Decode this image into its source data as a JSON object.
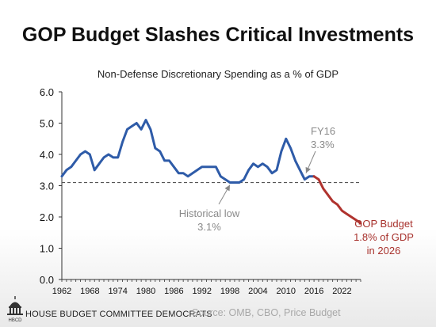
{
  "chart_data": {
    "type": "line",
    "title": "GOP Budget Slashes Critical Investments",
    "subtitle": "Non-Defense Discretionary Spending as a % of GDP",
    "ylim": [
      0,
      6
    ],
    "yticks": [
      "0.0",
      "1.0",
      "2.0",
      "3.0",
      "4.0",
      "5.0",
      "6.0"
    ],
    "xlim": [
      1962,
      2026
    ],
    "xticks": [
      "1962",
      "1968",
      "1974",
      "1980",
      "1986",
      "1992",
      "1998",
      "2004",
      "2010",
      "2016",
      "2022"
    ],
    "historical_line": 3.1,
    "series": [
      {
        "name": "",
        "color": "#2e5ba8",
        "x": [
          1962,
          1963,
          1964,
          1965,
          1966,
          1967,
          1968,
          1969,
          1970,
          1971,
          1972,
          1973,
          1974,
          1975,
          1976,
          1977,
          1978,
          1979,
          1980,
          1981,
          1982,
          1983,
          1984,
          1985,
          1986,
          1987,
          1988,
          1989,
          1990,
          1991,
          1992,
          1993,
          1994,
          1995,
          1996,
          1997,
          1998,
          1999,
          2000,
          2001,
          2002,
          2003,
          2004,
          2005,
          2006,
          2007,
          2008,
          2009,
          2010,
          2011,
          2012,
          2013,
          2014,
          2015,
          2016
        ],
        "values": [
          3.3,
          3.5,
          3.6,
          3.8,
          4.0,
          4.1,
          4.0,
          3.5,
          3.7,
          3.9,
          4.0,
          3.9,
          3.9,
          4.4,
          4.8,
          4.9,
          5.0,
          4.8,
          5.1,
          4.8,
          4.2,
          4.1,
          3.8,
          3.8,
          3.6,
          3.4,
          3.4,
          3.3,
          3.4,
          3.5,
          3.6,
          3.6,
          3.6,
          3.6,
          3.3,
          3.2,
          3.1,
          3.1,
          3.1,
          3.2,
          3.5,
          3.7,
          3.6,
          3.7,
          3.6,
          3.4,
          3.5,
          4.1,
          4.5,
          4.2,
          3.8,
          3.5,
          3.2,
          3.3,
          3.3
        ]
      },
      {
        "name": "GOP Budget",
        "color": "#b0332e",
        "x": [
          2016,
          2017,
          2018,
          2019,
          2020,
          2021,
          2022,
          2023,
          2024,
          2025,
          2026
        ],
        "values": [
          3.3,
          3.2,
          2.9,
          2.7,
          2.5,
          2.4,
          2.2,
          2.1,
          2.0,
          1.9,
          1.8
        ]
      }
    ],
    "annotations": {
      "fy16_label": "FY16",
      "fy16_value": "3.3%",
      "low_label": "Historical low",
      "low_value": "3.1%",
      "gop_label": "GOP Budget",
      "gop_value": "1.8% of GDP",
      "gop_year": "in 2026"
    }
  },
  "footer": {
    "logo_text": "HBCD",
    "org": "HOUSE BUDGET COMMITTEE DEMOCRATS",
    "source": "Source:  OMB, CBO, Price Budget"
  }
}
